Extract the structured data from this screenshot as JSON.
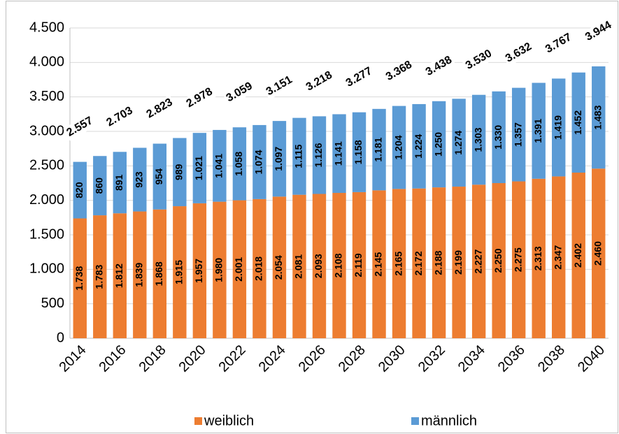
{
  "chart_data": {
    "type": "stacked_bar",
    "categories": [
      "2014",
      null,
      "2016",
      null,
      "2018",
      null,
      "2020",
      null,
      "2022",
      null,
      "2024",
      null,
      "2026",
      null,
      "2028",
      null,
      "2030",
      null,
      "2032",
      null,
      "2034",
      null,
      "2036",
      null,
      "2038",
      null,
      "2040"
    ],
    "series": [
      {
        "name": "weiblich",
        "color": "#ed7d31",
        "values": [
          1738,
          1783,
          1812,
          1839,
          1868,
          1915,
          1957,
          1980,
          2001,
          2018,
          2054,
          2081,
          2093,
          2108,
          2119,
          2145,
          2165,
          2172,
          2188,
          2199,
          2227,
          2250,
          2275,
          2313,
          2347,
          2402,
          2460
        ],
        "value_labels": [
          "1.738",
          "1.783",
          "1.812",
          "1.839",
          "1.868",
          "1.915",
          "1.957",
          "1.980",
          "2.001",
          "2.018",
          "2.054",
          "2.081",
          "2.093",
          "2.108",
          "2.119",
          "2.145",
          "2.165",
          "2.172",
          "2.188",
          "2.199",
          "2.227",
          "2.250",
          "2.275",
          "2.313",
          "2.347",
          "2.402",
          "2.460"
        ]
      },
      {
        "name": "männlich",
        "color": "#5b9bd5",
        "values": [
          820,
          860,
          891,
          923,
          954,
          989,
          1021,
          1041,
          1058,
          1074,
          1097,
          1115,
          1126,
          1141,
          1158,
          1181,
          1204,
          1224,
          1250,
          1274,
          1303,
          1330,
          1357,
          1391,
          1419,
          1452,
          1483
        ],
        "value_labels": [
          "820",
          "860",
          "891",
          "923",
          "954",
          "989",
          "1.021",
          "1.041",
          "1.058",
          "1.074",
          "1.097",
          "1.115",
          "1.126",
          "1.141",
          "1.158",
          "1.181",
          "1.204",
          "1.224",
          "1.250",
          "1.274",
          "1.303",
          "1.330",
          "1.357",
          "1.391",
          "1.419",
          "1.452",
          "1.483"
        ]
      }
    ],
    "totals": {
      "values": [
        2557,
        null,
        2703,
        null,
        2823,
        null,
        2978,
        null,
        3059,
        null,
        3151,
        null,
        3218,
        null,
        3277,
        null,
        3368,
        null,
        3438,
        null,
        3530,
        null,
        3632,
        null,
        3767,
        null,
        3944
      ],
      "value_labels": [
        "2.557",
        null,
        "2.703",
        null,
        "2.823",
        null,
        "2.978",
        null,
        "3.059",
        null,
        "3.151",
        null,
        "3.218",
        null,
        "3.277",
        null,
        "3.368",
        null,
        "3.438",
        null,
        "3.530",
        null,
        "3.632",
        null,
        "3.767",
        null,
        "3.944"
      ]
    },
    "ylim": [
      0,
      4500
    ],
    "yticks": [
      0,
      500,
      {
        "value": 1000,
        "label": "1.000"
      },
      {
        "value": 1500,
        "label": "1.500"
      },
      {
        "value": 2000,
        "label": "2.000"
      },
      {
        "value": 2500,
        "label": "2.500"
      },
      {
        "value": 3000,
        "label": "3.000"
      },
      {
        "value": 3500,
        "label": "3.500"
      },
      {
        "value": 4000,
        "label": "4.000"
      },
      {
        "value": 4500,
        "label": "4.500"
      }
    ],
    "grid": true,
    "legend": "bottom"
  }
}
